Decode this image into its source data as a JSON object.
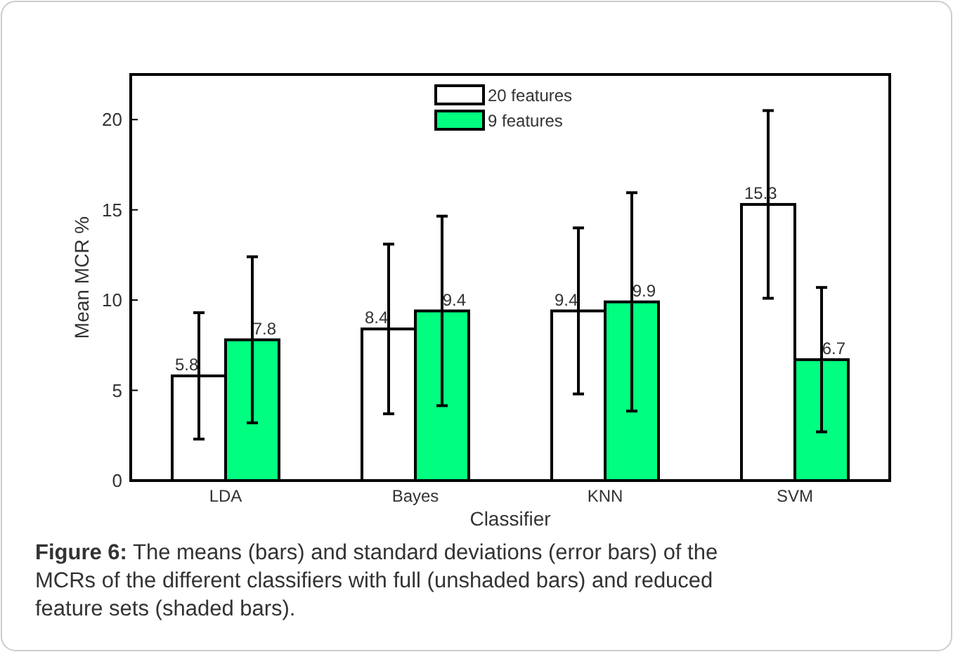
{
  "chart_data": {
    "type": "bar",
    "xlabel": "Classifier",
    "ylabel": "Mean MCR %",
    "categories": [
      "LDA",
      "Bayes",
      "KNN",
      "SVM"
    ],
    "series": [
      {
        "name": "20 features",
        "color": "#ffffff",
        "values": [
          5.8,
          8.4,
          9.4,
          15.3
        ],
        "errors": [
          3.5,
          4.7,
          4.6,
          5.2
        ]
      },
      {
        "name": "9 features",
        "color": "#00ff80",
        "values": [
          7.8,
          9.4,
          9.9,
          6.7
        ],
        "errors": [
          4.6,
          5.25,
          6.05,
          4.0
        ]
      }
    ],
    "ylim": [
      0,
      22.5
    ],
    "yticks": [
      0,
      5,
      10,
      15,
      20
    ],
    "grid": false,
    "legend": "top",
    "data_labels": true,
    "annotations": [
      "Figure 6: The means (bars) and standard deviations (error bars) of the MCRs of the different classifiers with full (unshaded bars) and reduced feature sets (shaded bars)."
    ]
  }
}
